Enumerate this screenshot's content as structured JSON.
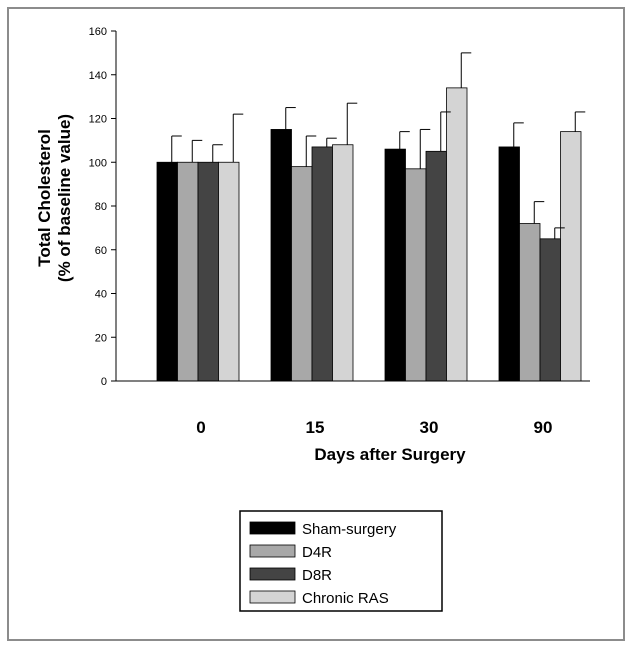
{
  "chart_data": {
    "type": "bar",
    "categories": [
      "0",
      "15",
      "30",
      "90"
    ],
    "series": [
      {
        "name": "Sham-surgery",
        "color": "#000000",
        "values": [
          100,
          115,
          106,
          107
        ],
        "errors": [
          12,
          10,
          8,
          11
        ]
      },
      {
        "name": "D4R",
        "color": "#a8a8a8",
        "values": [
          100,
          98,
          97,
          72
        ],
        "errors": [
          10,
          14,
          18,
          10
        ]
      },
      {
        "name": "D8R",
        "color": "#444444",
        "values": [
          100,
          107,
          105,
          65
        ],
        "errors": [
          8,
          4,
          18,
          5
        ]
      },
      {
        "name": "Chronic RAS",
        "color": "#d4d4d4",
        "values": [
          100,
          108,
          134,
          114
        ],
        "errors": [
          22,
          19,
          16,
          9
        ]
      }
    ],
    "xlabel": "Days after Surgery",
    "ylabel_line1": "Total Cholesterol",
    "ylabel_line2": "(% of baseline value)",
    "ylim": [
      0,
      160
    ],
    "yticks": [
      "0",
      "20",
      "40",
      "60",
      "80",
      "100",
      "120",
      "140",
      "160"
    ],
    "grid": false,
    "legend_position": "bottom-center"
  }
}
